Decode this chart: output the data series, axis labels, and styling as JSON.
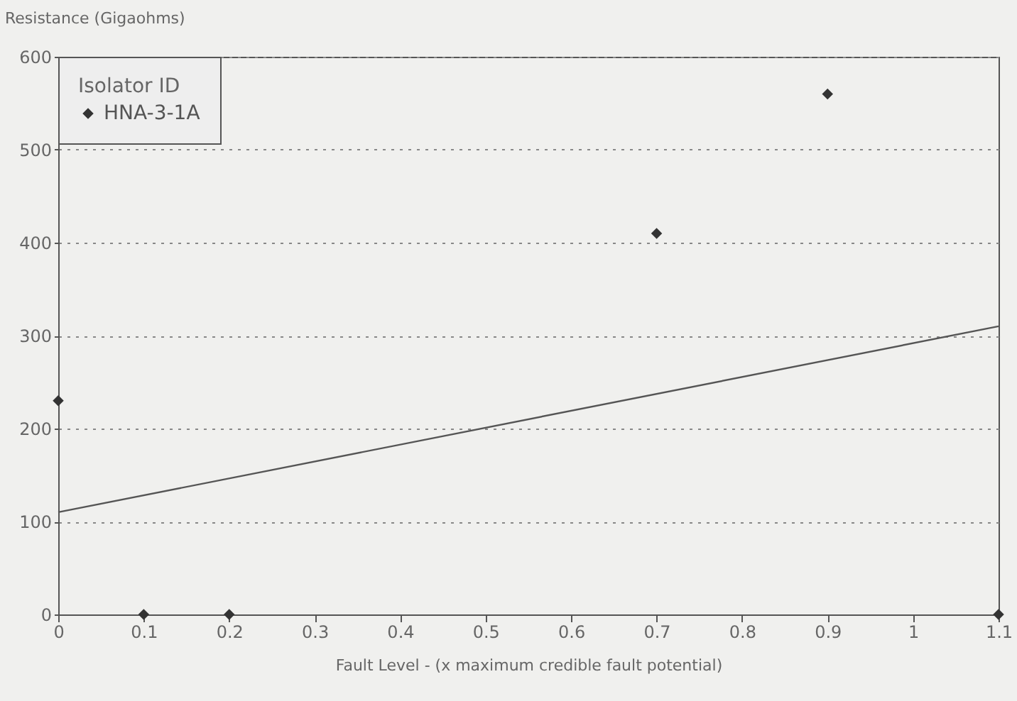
{
  "chart_data": {
    "type": "scatter",
    "xlabel": "Fault Level  -  (x  maximum credible fault potential)",
    "ylabel": "Resistance  (Gigaohms)",
    "legend_title": "Isolator ID",
    "series": [
      {
        "name": "HNA-3-1A",
        "color": "#333333",
        "marker": "diamond",
        "x": [
          0,
          0.1,
          0.2,
          0.7,
          0.9,
          1.1
        ],
        "values": [
          230,
          0,
          0,
          410,
          560,
          0
        ]
      },
      {
        "type": "line",
        "color": "#555555",
        "line_style": "solid",
        "x": [
          0,
          1.1
        ],
        "values": [
          110,
          310
        ]
      }
    ],
    "xlim": [
      0,
      1.1
    ],
    "xticks": [
      0,
      0.1,
      0.2,
      0.3,
      0.4,
      0.5,
      0.6,
      0.7,
      0.8,
      0.9,
      1,
      1.1
    ],
    "ylim": [
      0,
      600
    ],
    "yticks": [
      0,
      100,
      200,
      300,
      400,
      500,
      600
    ],
    "grid": "y",
    "legend": "top left"
  }
}
